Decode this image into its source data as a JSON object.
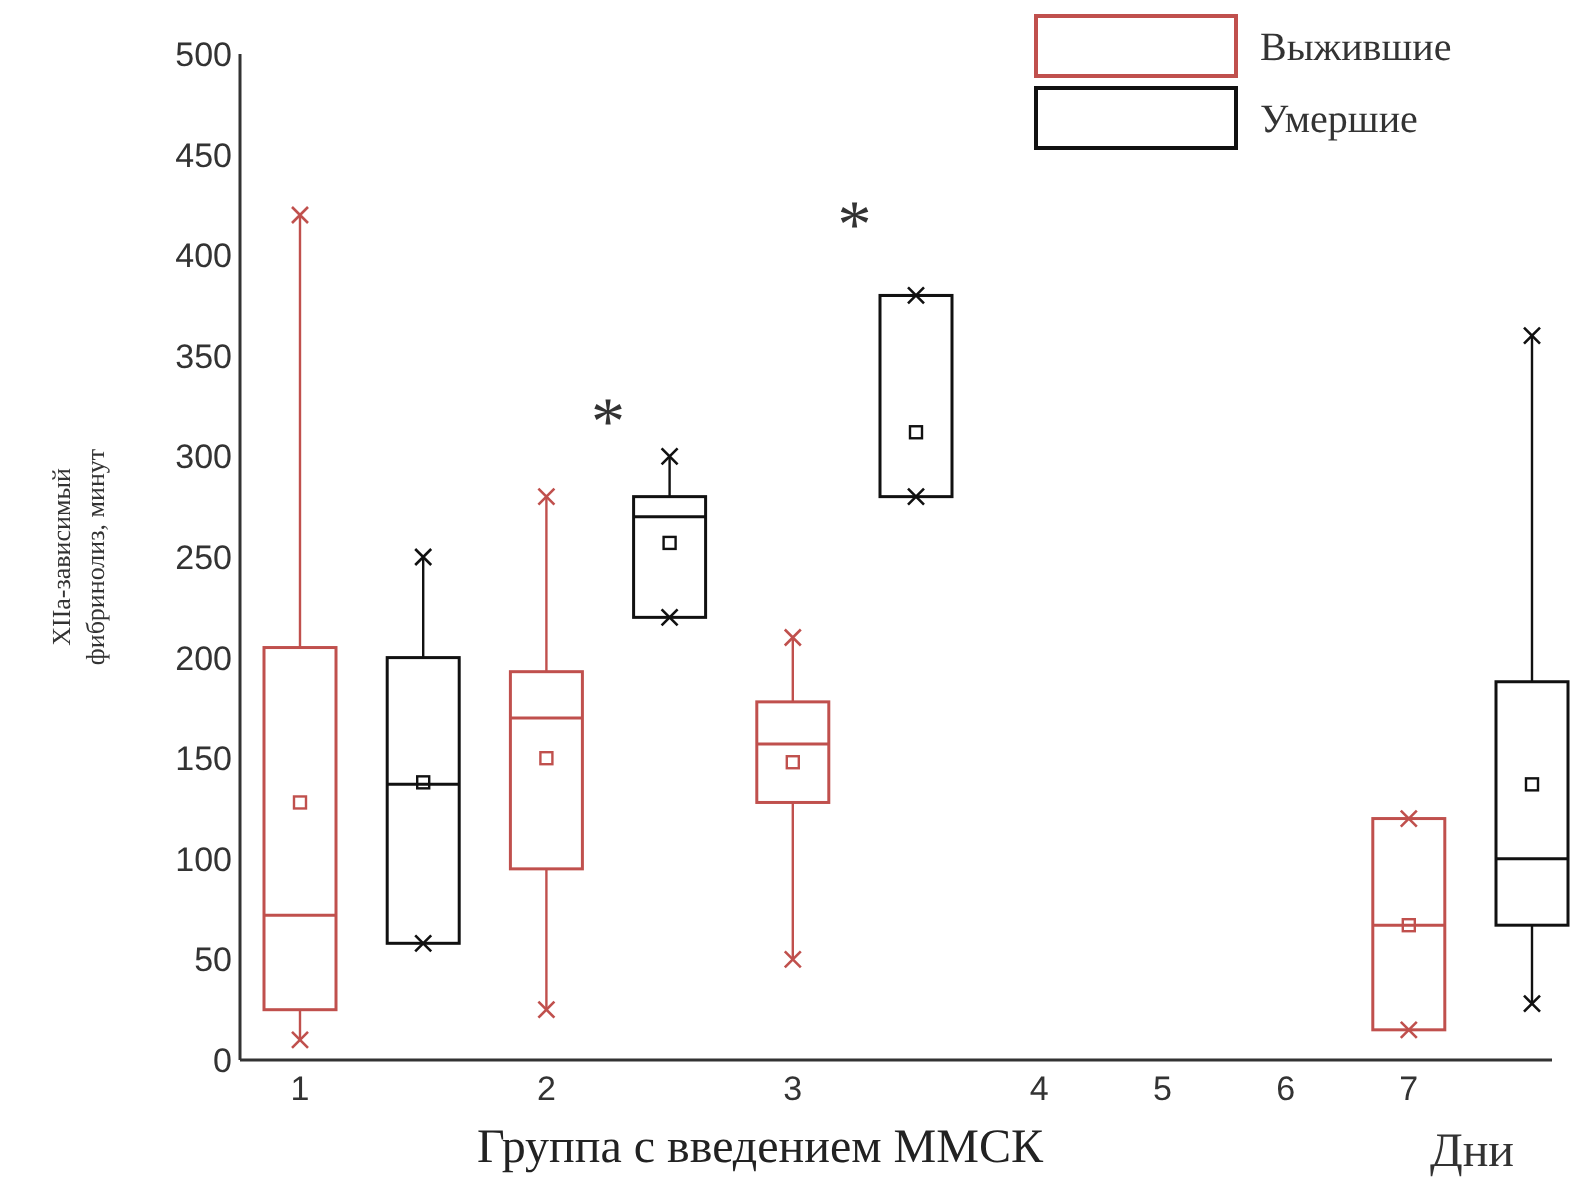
{
  "chart_data": {
    "type": "box",
    "xlabel": "Группа с введением ММСК",
    "ylabel": "XIIa-зависимый фибринолиз, минут",
    "categories": [
      "1",
      null,
      "2",
      null,
      "3",
      null,
      "4",
      "5",
      "6",
      "7",
      null
    ],
    "ylim": [
      0,
      500
    ],
    "yticks": [
      0,
      50,
      100,
      150,
      200,
      250,
      300,
      350,
      400,
      450,
      500
    ],
    "grid": false,
    "legend": "top right",
    "marker": "cross",
    "annotations": [
      "*",
      "*",
      "Дни"
    ],
    "series": [
      {
        "name": "Выжившие",
        "color": "#c0504d",
        "boxes": [
          {
            "low": 10,
            "q1": 25,
            "median": 72,
            "q3": 205,
            "high": 420,
            "mean": 128
          },
          null,
          {
            "low": 25,
            "q1": 95,
            "median": 170,
            "q3": 193,
            "high": 280,
            "mean": 150
          },
          null,
          {
            "low": 50,
            "q1": 128,
            "median": 157,
            "q3": 178,
            "high": 210,
            "mean": 148
          },
          null,
          null,
          null,
          null,
          {
            "low": 15,
            "q1": 15,
            "median": 67,
            "q3": 120,
            "high": 120,
            "mean": 67
          },
          null
        ]
      },
      {
        "name": "Умершие",
        "color": "#111111",
        "boxes": [
          null,
          {
            "low": 58,
            "q1": 58,
            "median": 137,
            "q3": 200,
            "high": 250,
            "mean": 138
          },
          null,
          {
            "low": 220,
            "q1": 220,
            "median": 270,
            "q3": 280,
            "high": 300,
            "mean": 257
          },
          null,
          {
            "low": 280,
            "q1": 280,
            "median": 380,
            "q3": 380,
            "high": 380,
            "mean": 312
          },
          null,
          null,
          null,
          null,
          {
            "low": 28,
            "q1": 67,
            "median": 100,
            "q3": 188,
            "high": 360,
            "mean": 137
          }
        ]
      }
    ]
  }
}
